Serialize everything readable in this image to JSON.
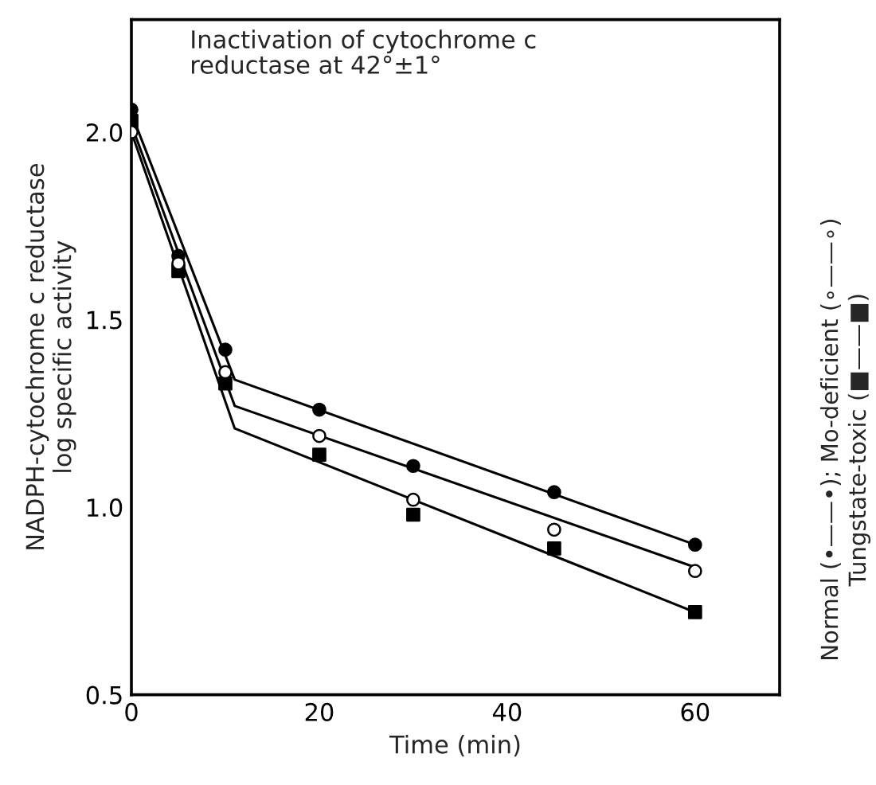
{
  "chart_data": {
    "type": "scatter",
    "title": "Inactivation of cytochrome c\nreductase at 42°±1°",
    "xlabel": "Time (min)",
    "ylabel": "NADPH-cytochrome c reductase\nlog specific activity",
    "x": [
      0,
      5,
      10,
      20,
      30,
      45,
      60
    ],
    "series": [
      {
        "marker": "circle",
        "color": "#000000",
        "values": [
          2.06,
          1.67,
          1.42,
          1.26,
          1.11,
          1.04,
          0.9
        ]
      },
      {
        "marker": "circle",
        "color": "#ffffff",
        "values": [
          2.0,
          1.65,
          1.36,
          1.19,
          1.02,
          0.94,
          0.83
        ]
      },
      {
        "marker": "square",
        "color": "#000000",
        "values": [
          2.03,
          1.63,
          1.33,
          1.14,
          0.98,
          0.89,
          0.72
        ]
      },
      {
        "type": "line",
        "color": "#000000",
        "x": [
          0,
          11,
          60
        ],
        "values": [
          2.05,
          1.34,
          0.9
        ]
      },
      {
        "type": "line",
        "color": "#000000",
        "x": [
          0,
          11,
          60
        ],
        "values": [
          2.02,
          1.27,
          0.84
        ]
      },
      {
        "type": "line",
        "color": "#000000",
        "x": [
          0,
          11,
          60
        ],
        "values": [
          2.0,
          1.21,
          0.72
        ]
      }
    ],
    "xlim": [
      0,
      69
    ],
    "xticks": [
      0,
      20,
      40,
      60
    ],
    "ylim": [
      0.5,
      2.3
    ],
    "yticks": [
      {
        "value": 0.5,
        "label": "0.5"
      },
      {
        "value": 1.0,
        "label": "1.0"
      },
      {
        "value": 1.5,
        "label": "1.5"
      },
      {
        "value": 2.0,
        "label": "2.0"
      }
    ],
    "grid": false,
    "legend": false,
    "annotations": [
      "Normal (•——•); Mo-deficient (∘——∘)\nTungstate-toxic (■——■)"
    ]
  }
}
